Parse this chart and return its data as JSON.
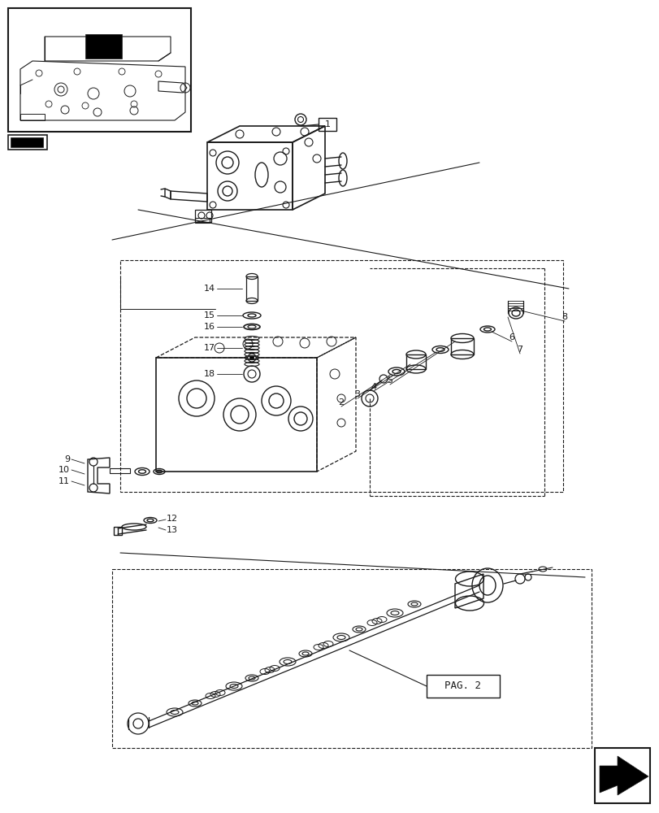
{
  "bg_color": "#ffffff",
  "lc": "#1a1a1a",
  "fig_width": 8.12,
  "fig_height": 10.0,
  "dpi": 100,
  "pag2_text": "PAG. 2"
}
